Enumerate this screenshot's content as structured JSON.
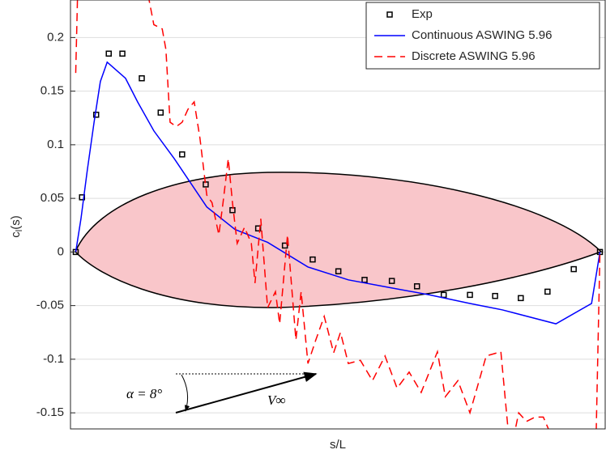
{
  "chart_data": {
    "type": "line",
    "xlabel": "s/L",
    "ylabel": {
      "base": "c",
      "subscript": "l",
      "suffix": "(s)"
    },
    "xlim": [
      -0.01,
      1.01
    ],
    "ylim": [
      -0.165,
      0.235
    ],
    "yticks": [
      -0.15,
      -0.1,
      -0.05,
      0,
      0.05,
      0.1,
      0.15,
      0.2
    ],
    "grid": true,
    "legend": "northeast",
    "annotations": {
      "angle": "α = 8°",
      "velocity": "V∞"
    },
    "series": [
      {
        "name": "Exp",
        "color": "#000000",
        "marker": "square",
        "line_style": "none",
        "x": [
          0,
          0.012,
          0.039,
          0.063,
          0.089,
          0.126,
          0.162,
          0.203,
          0.248,
          0.299,
          0.348,
          0.399,
          0.452,
          0.501,
          0.551,
          0.603,
          0.651,
          0.702,
          0.752,
          0.8,
          0.849,
          0.9,
          0.95,
          1.0
        ],
        "values": [
          0,
          0.051,
          0.128,
          0.185,
          0.185,
          0.162,
          0.13,
          0.091,
          0.063,
          0.039,
          0.022,
          0.006,
          -0.007,
          -0.018,
          -0.026,
          -0.027,
          -0.032,
          -0.04,
          -0.04,
          -0.041,
          -0.043,
          -0.037,
          -0.016,
          0
        ]
      },
      {
        "name": "Continuous ASWING 5.96",
        "color": "#0000ff",
        "marker": "none",
        "line_style": "solid",
        "x": [
          0,
          0.01,
          0.022,
          0.035,
          0.047,
          0.06,
          0.095,
          0.118,
          0.149,
          0.188,
          0.25,
          0.304,
          0.366,
          0.443,
          0.52,
          0.597,
          0.675,
          0.752,
          0.814,
          0.916,
          0.984,
          1.0
        ],
        "values": [
          0,
          0.031,
          0.076,
          0.121,
          0.159,
          0.177,
          0.162,
          0.14,
          0.113,
          0.087,
          0.042,
          0.021,
          0.009,
          -0.014,
          -0.026,
          -0.033,
          -0.04,
          -0.048,
          -0.054,
          -0.067,
          -0.048,
          0
        ]
      },
      {
        "name": "Discrete ASWING 5.96",
        "color": "#ff0000",
        "marker": "none",
        "line_style": "dashed",
        "x": [
          0,
          0.004,
          0.134,
          0.149,
          0.165,
          0.172,
          0.18,
          0.192,
          0.203,
          0.214,
          0.226,
          0.237,
          0.25,
          0.26,
          0.273,
          0.281,
          0.291,
          0.299,
          0.308,
          0.322,
          0.335,
          0.342,
          0.353,
          0.366,
          0.381,
          0.389,
          0.404,
          0.42,
          0.43,
          0.443,
          0.458,
          0.474,
          0.492,
          0.505,
          0.52,
          0.543,
          0.566,
          0.59,
          0.613,
          0.636,
          0.659,
          0.69,
          0.705,
          0.729,
          0.752,
          0.783,
          0.811,
          0.829,
          0.845,
          0.86,
          0.876,
          0.892,
          0.922,
          0.992,
          1.0
        ],
        "values": [
          0.167,
          0.25,
          0.25,
          0.212,
          0.208,
          0.189,
          0.121,
          0.117,
          0.121,
          0.133,
          0.14,
          0.106,
          0.053,
          0.046,
          0.016,
          0.046,
          0.087,
          0.046,
          0.008,
          0.023,
          0.008,
          -0.029,
          0.031,
          -0.052,
          -0.037,
          -0.067,
          0.016,
          -0.082,
          -0.037,
          -0.104,
          -0.082,
          -0.06,
          -0.094,
          -0.075,
          -0.104,
          -0.101,
          -0.12,
          -0.097,
          -0.127,
          -0.112,
          -0.131,
          -0.093,
          -0.135,
          -0.12,
          -0.15,
          -0.097,
          -0.093,
          -0.188,
          -0.15,
          -0.158,
          -0.154,
          -0.154,
          -0.188,
          -0.188,
          0
        ]
      }
    ]
  }
}
